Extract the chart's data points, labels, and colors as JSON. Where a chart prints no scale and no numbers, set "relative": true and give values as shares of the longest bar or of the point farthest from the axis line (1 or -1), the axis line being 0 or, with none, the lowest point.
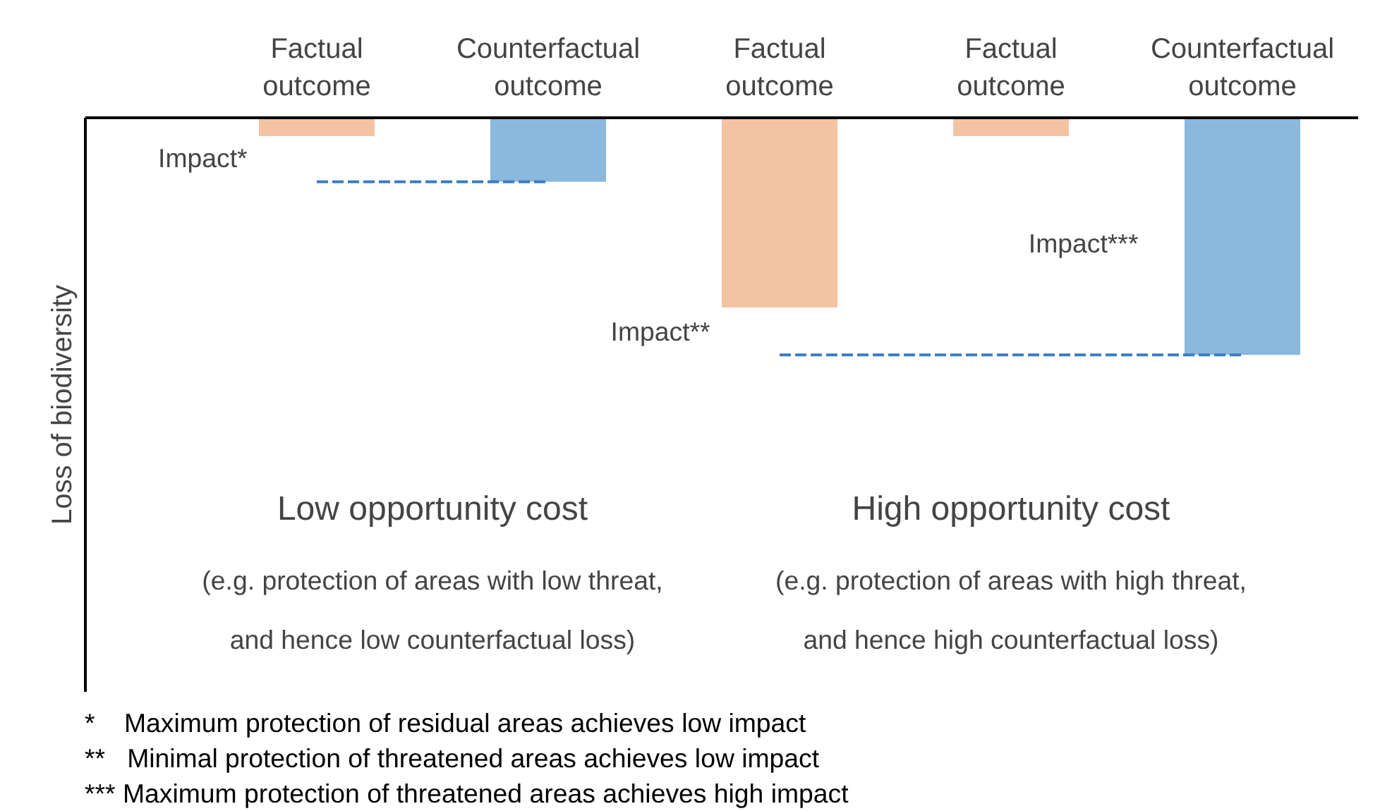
{
  "chart_data": {
    "type": "bar",
    "relative": true,
    "ylabel": "Loss of biodiversity",
    "categories": [
      "Factual outcome",
      "Counterfactual outcome",
      "Factual outcome",
      "Factual outcome",
      "Counterfactual outcome"
    ],
    "series": [
      {
        "colors": [
          "#f4c3a1",
          "#8ab8de",
          "#f4c3a1",
          "#f4c3a1",
          "#8ab8de"
        ],
        "values": [
          -0.077,
          -0.27,
          -0.8,
          -0.077,
          -1
        ]
      },
      {
        "type": "line",
        "color": "#3a7cc4",
        "line_style": "dashed",
        "marker": "none",
        "values": [
          -0.27,
          -0.27,
          null,
          null,
          null
        ]
      },
      {
        "type": "line",
        "color": "#3a7cc4",
        "line_style": "dashed",
        "marker": "none",
        "values": [
          null,
          null,
          -1,
          -1,
          -1
        ]
      }
    ],
    "annotations": [
      "Impact*",
      "Impact**",
      "Impact***",
      "Low opportunity cost",
      "(e.g. protection of areas with low threat, and hence low counterfactual loss)",
      "High opportunity cost",
      "(e.g. protection of areas with high threat, and hence high counterfactual loss)",
      "*    Maximum protection of residual areas achieves low impact",
      "**   Minimal protection of threatened areas achieves low impact",
      "*** Maximum protection of threatened areas achieves high impact"
    ]
  }
}
